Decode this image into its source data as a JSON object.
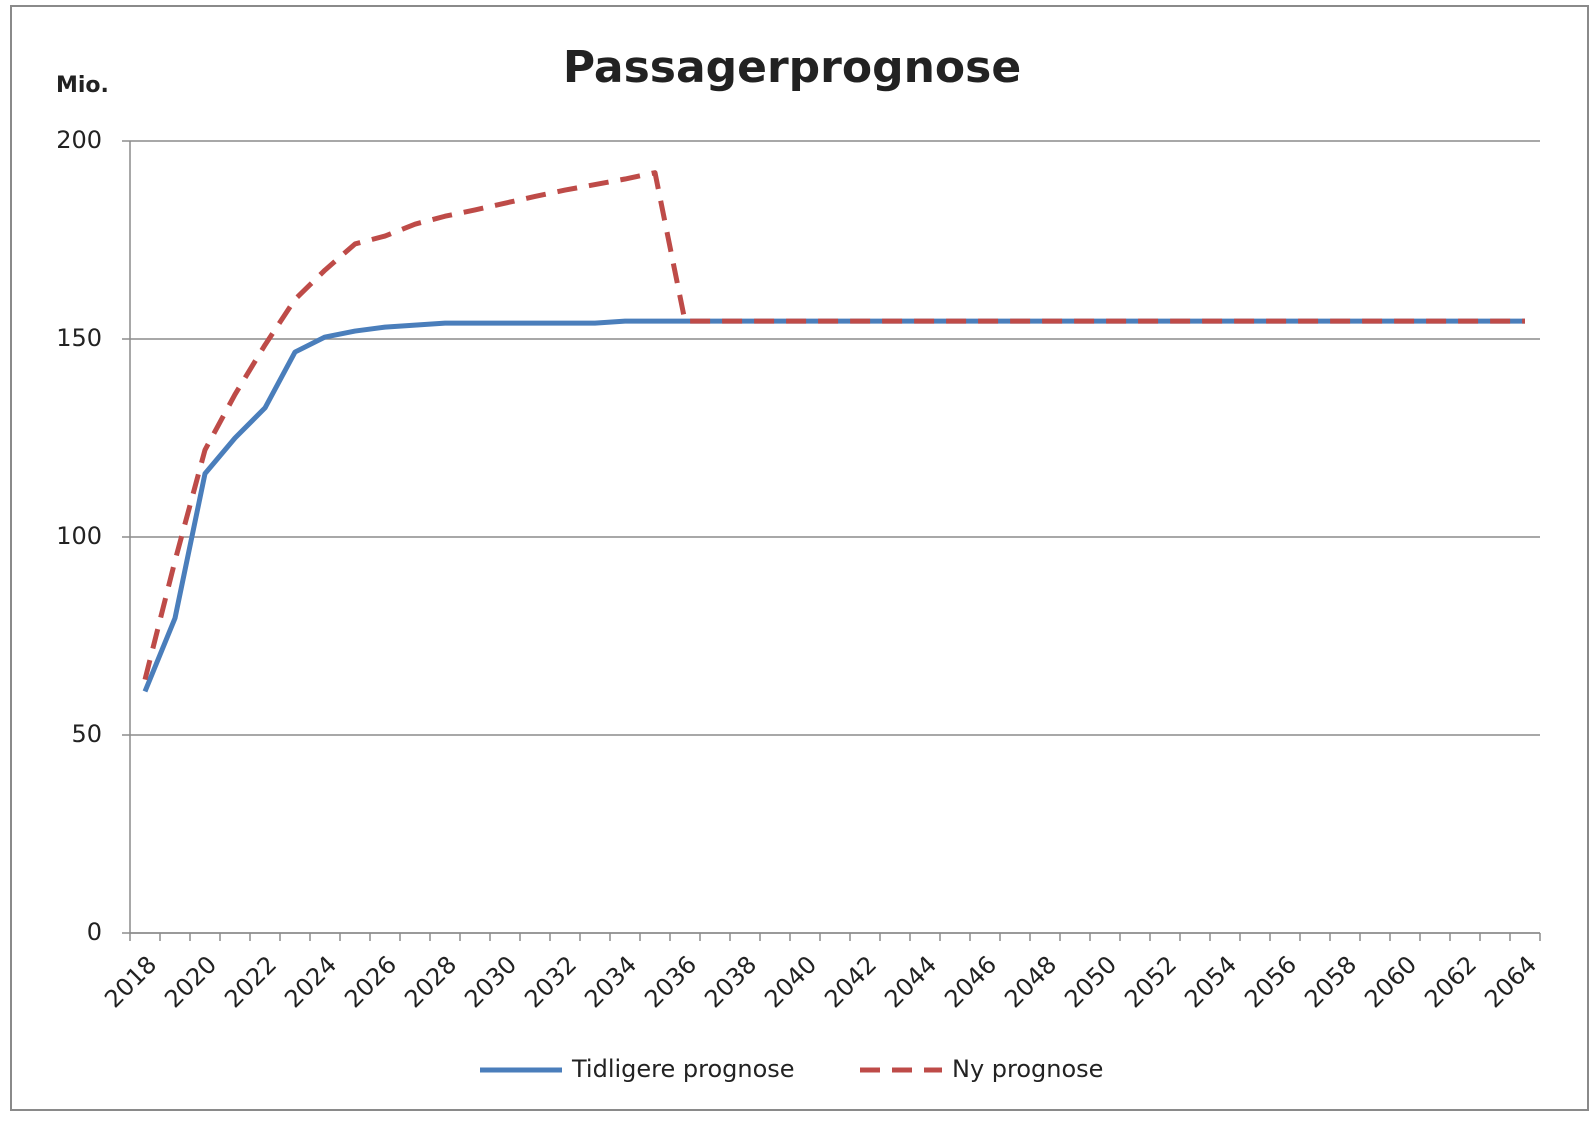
{
  "chart_data": {
    "type": "line",
    "title": "Passagerprognose",
    "y_label": "Mio.",
    "categories": [
      2018,
      null,
      2020,
      null,
      2022,
      null,
      2024,
      null,
      2026,
      null,
      2028,
      null,
      2030,
      null,
      2032,
      null,
      2034,
      null,
      2036,
      null,
      2038,
      null,
      2040,
      null,
      2042,
      null,
      2044,
      null,
      2046,
      null,
      2048,
      null,
      2050,
      null,
      2052,
      null,
      2054,
      null,
      2056,
      null,
      2058,
      null,
      2060,
      null,
      2062,
      null,
      2064
    ],
    "series": [
      {
        "name": "Tidligere prognose",
        "color": "#4a7ebb",
        "dash": false,
        "values": [
          61,
          79.5,
          116,
          125,
          132.6,
          146.7,
          150.5,
          152,
          153,
          153.5,
          154,
          154,
          154,
          154,
          154,
          154,
          154.5,
          154.5,
          154.5,
          154.5,
          154.5,
          154.5,
          154.5,
          154.5,
          154.5,
          154.5,
          154.5,
          154.5,
          154.5,
          154.5,
          154.5,
          154.5,
          154.5,
          154.5,
          154.5,
          154.5,
          154.5,
          154.5,
          154.5,
          154.5,
          154.5,
          154.5,
          154.5,
          154.5,
          154.5,
          154.5,
          154.5
        ]
      },
      {
        "name": "Ny prognose",
        "color": "#be4b48",
        "dash": true,
        "values": [
          64,
          94,
          122,
          136,
          148.5,
          160,
          167.4,
          174,
          176,
          179,
          181,
          182.6,
          184.3,
          186,
          187.6,
          189,
          190.4,
          192,
          154.5,
          154.5,
          154.5,
          154.5,
          154.5,
          154.5,
          154.5,
          154.5,
          154.5,
          154.5,
          154.5,
          154.5,
          154.5,
          154.5,
          154.5,
          154.5,
          154.5,
          154.5,
          154.5,
          154.5,
          154.5,
          154.5,
          154.5,
          154.5,
          154.5,
          154.5,
          154.5,
          154.5,
          154.5
        ]
      }
    ],
    "ylim": [
      0,
      200
    ],
    "yticks": [
      0,
      50,
      100,
      150,
      200
    ],
    "grid": true,
    "legend": "bottom"
  }
}
